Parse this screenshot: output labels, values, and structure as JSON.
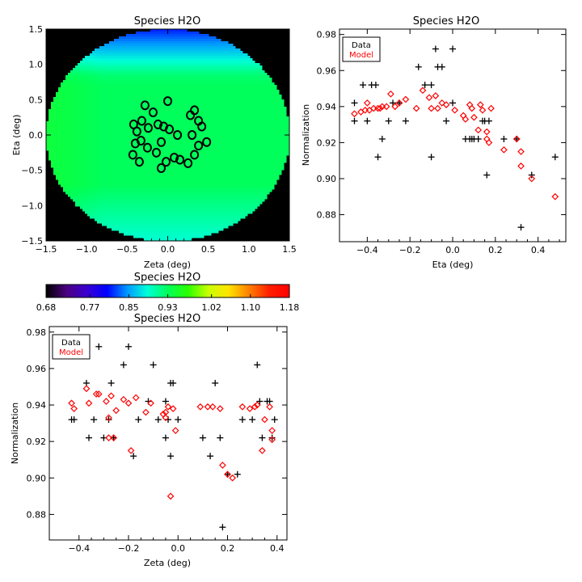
{
  "chart_data": [
    {
      "id": "map",
      "type": "heatmap",
      "title": "Species H2O",
      "xlabel": "Zeta (deg)",
      "ylabel": "Eta (deg)",
      "xlim": [
        -1.5,
        1.5
      ],
      "ylim": [
        -1.5,
        1.5
      ],
      "xticks": [
        "−1.5",
        "−1.0",
        "−0.5",
        "0.0",
        "0.5",
        "1.0",
        "1.5"
      ],
      "xtick_values": [
        -1.5,
        -1.0,
        -0.5,
        0.0,
        0.5,
        1.0,
        1.5
      ],
      "yticks": [
        "−1.5",
        "−1.0",
        "−0.5",
        "0.0",
        "0.5",
        "1.0",
        "1.5"
      ],
      "ytick_values": [
        -1.5,
        -1.0,
        -0.5,
        0.0,
        0.5,
        1.0,
        1.5
      ],
      "field_radius": 1.5,
      "background": "#000000",
      "colorbar": {
        "title": "Species H2O",
        "min": 0.68,
        "max": 1.18,
        "tick_labels": [
          "0.68",
          "0.77",
          "0.85",
          "0.93",
          "1.02",
          "1.10",
          "1.18"
        ],
        "tick_values": [
          0.68,
          0.77,
          0.85,
          0.93,
          1.02,
          1.1,
          1.18
        ],
        "colormap": [
          "#000000",
          "#4b007f",
          "#3a00d0",
          "#0000ff",
          "#0098ff",
          "#00ffd8",
          "#00ff5a",
          "#2aff00",
          "#c8ff00",
          "#ffe400",
          "#ff8000",
          "#ff1f00",
          "#ff0000"
        ]
      },
      "stars": [
        {
          "x": -0.28,
          "y": 0.42
        },
        {
          "x": 0.0,
          "y": 0.48
        },
        {
          "x": -0.42,
          "y": 0.15
        },
        {
          "x": -0.32,
          "y": 0.2
        },
        {
          "x": -0.24,
          "y": 0.1
        },
        {
          "x": -0.38,
          "y": 0.05
        },
        {
          "x": -0.18,
          "y": 0.32
        },
        {
          "x": -0.12,
          "y": 0.15
        },
        {
          "x": -0.05,
          "y": 0.12
        },
        {
          "x": 0.02,
          "y": 0.08
        },
        {
          "x": 0.28,
          "y": 0.28
        },
        {
          "x": 0.33,
          "y": 0.35
        },
        {
          "x": 0.38,
          "y": 0.2
        },
        {
          "x": 0.42,
          "y": 0.12
        },
        {
          "x": 0.3,
          "y": 0.0
        },
        {
          "x": -0.4,
          "y": -0.12
        },
        {
          "x": -0.33,
          "y": -0.08
        },
        {
          "x": -0.43,
          "y": -0.28
        },
        {
          "x": -0.35,
          "y": -0.38
        },
        {
          "x": -0.25,
          "y": -0.18
        },
        {
          "x": -0.14,
          "y": -0.25
        },
        {
          "x": -0.08,
          "y": -0.47
        },
        {
          "x": -0.02,
          "y": -0.38
        },
        {
          "x": 0.08,
          "y": -0.32
        },
        {
          "x": 0.15,
          "y": -0.35
        },
        {
          "x": 0.25,
          "y": -0.4
        },
        {
          "x": 0.33,
          "y": -0.28
        },
        {
          "x": 0.38,
          "y": -0.15
        },
        {
          "x": 0.48,
          "y": -0.1
        },
        {
          "x": 0.12,
          "y": 0.0
        },
        {
          "x": -0.08,
          "y": -0.1
        }
      ]
    },
    {
      "id": "eta",
      "type": "scatter",
      "title": "Species H2O",
      "xlabel": "Eta (deg)",
      "ylabel": "Normalization",
      "xlim": [
        -0.53,
        0.53
      ],
      "ylim": [
        0.865,
        0.983
      ],
      "xticks": [
        "−0.4",
        "−0.2",
        "0.0",
        "0.2",
        "0.4"
      ],
      "xtick_values": [
        -0.4,
        -0.2,
        0.0,
        0.2,
        0.4
      ],
      "yticks": [
        "0.88",
        "0.90",
        "0.92",
        "0.94",
        "0.96",
        "0.98"
      ],
      "ytick_values": [
        0.88,
        0.9,
        0.92,
        0.94,
        0.96,
        0.98
      ],
      "legend": [
        {
          "label": "Data",
          "color": "#000000"
        },
        {
          "label": "Model",
          "color": "#ff0000"
        }
      ],
      "legend_placement": "top-left",
      "series": [
        {
          "name": "Data",
          "marker": "plus",
          "color": "#000000",
          "points": [
            [
              -0.46,
              0.942
            ],
            [
              -0.46,
              0.932
            ],
            [
              -0.42,
              0.952
            ],
            [
              -0.4,
              0.932
            ],
            [
              -0.38,
              0.952
            ],
            [
              -0.36,
              0.952
            ],
            [
              -0.35,
              0.912
            ],
            [
              -0.33,
              0.922
            ],
            [
              -0.3,
              0.932
            ],
            [
              -0.28,
              0.942
            ],
            [
              -0.25,
              0.942
            ],
            [
              -0.22,
              0.932
            ],
            [
              -0.16,
              0.962
            ],
            [
              -0.13,
              0.952
            ],
            [
              -0.1,
              0.952
            ],
            [
              -0.1,
              0.912
            ],
            [
              -0.08,
              0.972
            ],
            [
              -0.07,
              0.962
            ],
            [
              -0.05,
              0.962
            ],
            [
              -0.03,
              0.932
            ],
            [
              0.0,
              0.942
            ],
            [
              0.0,
              0.972
            ],
            [
              0.06,
              0.922
            ],
            [
              0.08,
              0.922
            ],
            [
              0.09,
              0.922
            ],
            [
              0.1,
              0.922
            ],
            [
              0.12,
              0.922
            ],
            [
              0.14,
              0.932
            ],
            [
              0.15,
              0.932
            ],
            [
              0.16,
              0.902
            ],
            [
              0.17,
              0.932
            ],
            [
              0.24,
              0.922
            ],
            [
              0.3,
              0.922
            ],
            [
              0.32,
              0.873
            ],
            [
              0.37,
              0.902
            ],
            [
              0.48,
              0.912
            ]
          ]
        },
        {
          "name": "Model",
          "marker": "diamond",
          "color": "#ff0000",
          "points": [
            [
              -0.46,
              0.936
            ],
            [
              -0.43,
              0.937
            ],
            [
              -0.41,
              0.938
            ],
            [
              -0.4,
              0.942
            ],
            [
              -0.39,
              0.938
            ],
            [
              -0.37,
              0.939
            ],
            [
              -0.35,
              0.939
            ],
            [
              -0.34,
              0.939
            ],
            [
              -0.33,
              0.94
            ],
            [
              -0.31,
              0.94
            ],
            [
              -0.29,
              0.947
            ],
            [
              -0.27,
              0.94
            ],
            [
              -0.25,
              0.942
            ],
            [
              -0.22,
              0.944
            ],
            [
              -0.17,
              0.939
            ],
            [
              -0.14,
              0.949
            ],
            [
              -0.11,
              0.945
            ],
            [
              -0.1,
              0.939
            ],
            [
              -0.08,
              0.946
            ],
            [
              -0.07,
              0.939
            ],
            [
              -0.05,
              0.942
            ],
            [
              -0.03,
              0.941
            ],
            [
              0.01,
              0.938
            ],
            [
              0.05,
              0.935
            ],
            [
              0.06,
              0.933
            ],
            [
              0.08,
              0.941
            ],
            [
              0.09,
              0.939
            ],
            [
              0.1,
              0.934
            ],
            [
              0.12,
              0.927
            ],
            [
              0.13,
              0.941
            ],
            [
              0.14,
              0.938
            ],
            [
              0.16,
              0.926
            ],
            [
              0.16,
              0.922
            ],
            [
              0.17,
              0.92
            ],
            [
              0.18,
              0.939
            ],
            [
              0.24,
              0.916
            ],
            [
              0.3,
              0.922
            ],
            [
              0.32,
              0.915
            ],
            [
              0.32,
              0.907
            ],
            [
              0.37,
              0.9
            ],
            [
              0.48,
              0.89
            ]
          ]
        }
      ]
    },
    {
      "id": "zeta",
      "type": "scatter",
      "title": "Species H2O",
      "xlabel": "Zeta (deg)",
      "ylabel": "Normalization",
      "xlim": [
        -0.52,
        0.44
      ],
      "ylim": [
        0.866,
        0.983
      ],
      "xticks": [
        "−0.4",
        "−0.2",
        "0.0",
        "0.2",
        "0.4"
      ],
      "xtick_values": [
        -0.4,
        -0.2,
        0.0,
        0.2,
        0.4
      ],
      "yticks": [
        "0.88",
        "0.90",
        "0.92",
        "0.94",
        "0.96",
        "0.98"
      ],
      "ytick_values": [
        0.88,
        0.9,
        0.92,
        0.94,
        0.96,
        0.98
      ],
      "legend": [
        {
          "label": "Data",
          "color": "#000000"
        },
        {
          "label": "Model",
          "color": "#ff0000"
        }
      ],
      "legend_placement": "top-left",
      "series": [
        {
          "name": "Data",
          "marker": "plus",
          "color": "#000000",
          "points": [
            [
              -0.43,
              0.932
            ],
            [
              -0.42,
              0.932
            ],
            [
              -0.37,
              0.952
            ],
            [
              -0.36,
              0.922
            ],
            [
              -0.34,
              0.932
            ],
            [
              -0.32,
              0.972
            ],
            [
              -0.3,
              0.922
            ],
            [
              -0.28,
              0.932
            ],
            [
              -0.27,
              0.952
            ],
            [
              -0.26,
              0.922
            ],
            [
              -0.22,
              0.962
            ],
            [
              -0.2,
              0.972
            ],
            [
              -0.18,
              0.912
            ],
            [
              -0.16,
              0.932
            ],
            [
              -0.12,
              0.942
            ],
            [
              -0.1,
              0.962
            ],
            [
              -0.08,
              0.932
            ],
            [
              -0.05,
              0.942
            ],
            [
              -0.05,
              0.922
            ],
            [
              -0.04,
              0.932
            ],
            [
              -0.03,
              0.952
            ],
            [
              -0.03,
              0.912
            ],
            [
              -0.02,
              0.952
            ],
            [
              0.0,
              0.932
            ],
            [
              0.1,
              0.922
            ],
            [
              0.13,
              0.912
            ],
            [
              0.15,
              0.952
            ],
            [
              0.17,
              0.922
            ],
            [
              0.18,
              0.873
            ],
            [
              0.2,
              0.902
            ],
            [
              0.24,
              0.902
            ],
            [
              0.26,
              0.932
            ],
            [
              0.3,
              0.932
            ],
            [
              0.32,
              0.962
            ],
            [
              0.33,
              0.942
            ],
            [
              0.34,
              0.922
            ],
            [
              0.36,
              0.942
            ],
            [
              0.37,
              0.942
            ],
            [
              0.38,
              0.922
            ],
            [
              0.39,
              0.932
            ]
          ]
        },
        {
          "name": "Model",
          "marker": "diamond",
          "color": "#ff0000",
          "points": [
            [
              -0.43,
              0.941
            ],
            [
              -0.42,
              0.938
            ],
            [
              -0.37,
              0.949
            ],
            [
              -0.36,
              0.941
            ],
            [
              -0.33,
              0.946
            ],
            [
              -0.32,
              0.946
            ],
            [
              -0.29,
              0.942
            ],
            [
              -0.28,
              0.922
            ],
            [
              -0.28,
              0.933
            ],
            [
              -0.27,
              0.945
            ],
            [
              -0.26,
              0.922
            ],
            [
              -0.25,
              0.937
            ],
            [
              -0.22,
              0.943
            ],
            [
              -0.2,
              0.941
            ],
            [
              -0.19,
              0.915
            ],
            [
              -0.17,
              0.944
            ],
            [
              -0.13,
              0.936
            ],
            [
              -0.11,
              0.941
            ],
            [
              -0.06,
              0.935
            ],
            [
              -0.05,
              0.933
            ],
            [
              -0.05,
              0.936
            ],
            [
              -0.04,
              0.939
            ],
            [
              -0.03,
              0.89
            ],
            [
              -0.02,
              0.938
            ],
            [
              -0.01,
              0.926
            ],
            [
              0.09,
              0.939
            ],
            [
              0.12,
              0.939
            ],
            [
              0.14,
              0.939
            ],
            [
              0.17,
              0.938
            ],
            [
              0.18,
              0.907
            ],
            [
              0.2,
              0.902
            ],
            [
              0.22,
              0.9
            ],
            [
              0.26,
              0.939
            ],
            [
              0.29,
              0.938
            ],
            [
              0.31,
              0.939
            ],
            [
              0.32,
              0.94
            ],
            [
              0.34,
              0.915
            ],
            [
              0.35,
              0.932
            ],
            [
              0.37,
              0.939
            ],
            [
              0.38,
              0.926
            ],
            [
              0.38,
              0.921
            ]
          ]
        }
      ]
    }
  ]
}
